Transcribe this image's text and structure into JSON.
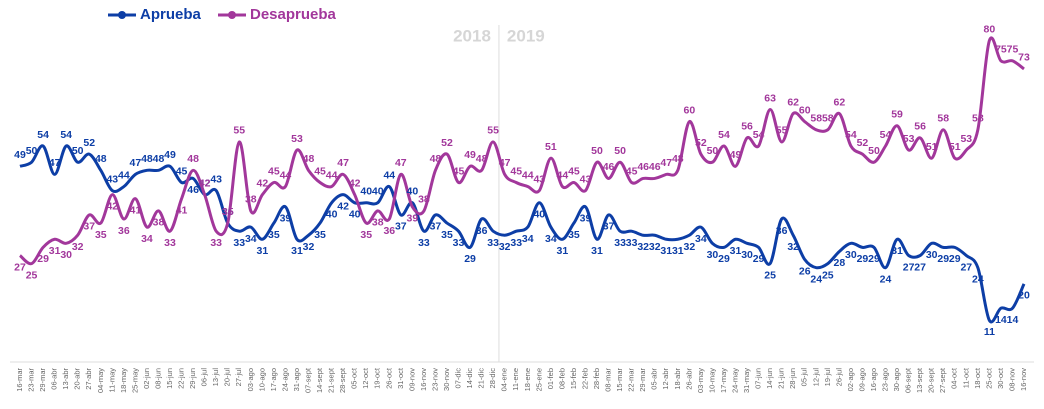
{
  "chart_data": {
    "type": "line",
    "categories": [
      "16-mar",
      "23-mar",
      "29-mar",
      "06-abr",
      "13-abr",
      "20-abr",
      "27-abr",
      "04-may",
      "11-may",
      "18-may",
      "25-may",
      "02-jun",
      "08-jun",
      "15-jun",
      "22-jun",
      "29-jun",
      "06-jul",
      "13-jul",
      "20-jul",
      "27-jul",
      "03-ago",
      "10-ago",
      "17-ago",
      "24-ago",
      "31-ago",
      "07-sept",
      "14-sept",
      "21-sept",
      "28-sept",
      "05-oct",
      "12-oct",
      "19-oct",
      "26-oct",
      "31-oct",
      "09-nov",
      "16-nov",
      "23-nov",
      "30-nov",
      "07-dic",
      "14-dic",
      "21-dic",
      "28-dic",
      "04-ene",
      "11-ene",
      "18-ene",
      "25-ene",
      "01-feb",
      "08-feb",
      "15-feb",
      "22-feb",
      "28-feb",
      "08-mar",
      "15-mar",
      "22-mar",
      "29-mar",
      "05-abr",
      "12-abr",
      "18-abr",
      "26-abr",
      "03-may",
      "10-may",
      "17-may",
      "24-may",
      "31-may",
      "07-jun",
      "14-jun",
      "21-jun",
      "28-jun",
      "05-jul",
      "12-jul",
      "19-jul",
      "26-jul",
      "02-ago",
      "09-ago",
      "16-ago",
      "23-ago",
      "30-ago",
      "06-sept",
      "13-sept",
      "20-sept",
      "27-sept",
      "04-oct",
      "11-oct",
      "18-oct",
      "25-oct",
      "30-oct",
      "08-nov",
      "16-nov"
    ],
    "series": [
      {
        "name": "Aprueba",
        "color": "#0d3ea6",
        "values": [
          49,
          50,
          54,
          47,
          54,
          50,
          52,
          48,
          43,
          44,
          47,
          48,
          48,
          49,
          45,
          46,
          42,
          43,
          35,
          33,
          34,
          31,
          35,
          39,
          31,
          32,
          35,
          40,
          42,
          40,
          40,
          40,
          44,
          37,
          40,
          33,
          37,
          35,
          33,
          29,
          36,
          33,
          32,
          33,
          34,
          40,
          34,
          31,
          35,
          39,
          31,
          37,
          33,
          33,
          32,
          32,
          31,
          31,
          32,
          34,
          30,
          29,
          31,
          30,
          29,
          25,
          36,
          32,
          26,
          24,
          25,
          28,
          30,
          29,
          29,
          24,
          31,
          27,
          27,
          30,
          29,
          29,
          27,
          24,
          11,
          14,
          14,
          20
        ]
      },
      {
        "name": "Desaprueba",
        "color": "#a2379b",
        "values": [
          27,
          25,
          29,
          31,
          30,
          32,
          37,
          35,
          42,
          36,
          41,
          34,
          38,
          33,
          41,
          48,
          42,
          33,
          35,
          55,
          38,
          42,
          45,
          44,
          53,
          48,
          45,
          44,
          47,
          42,
          35,
          38,
          36,
          47,
          39,
          38,
          48,
          52,
          45,
          49,
          48,
          55,
          47,
          45,
          44,
          43,
          51,
          44,
          45,
          43,
          50,
          46,
          50,
          45,
          46,
          46,
          47,
          48,
          60,
          52,
          50,
          54,
          49,
          56,
          54,
          63,
          55,
          62,
          60,
          58,
          58,
          62,
          54,
          52,
          50,
          54,
          59,
          53,
          56,
          51,
          58,
          51,
          53,
          58,
          80,
          75,
          75,
          73
        ]
      }
    ],
    "annotations": [
      "2018",
      "2019"
    ],
    "ylim": [
      0,
      90
    ]
  }
}
